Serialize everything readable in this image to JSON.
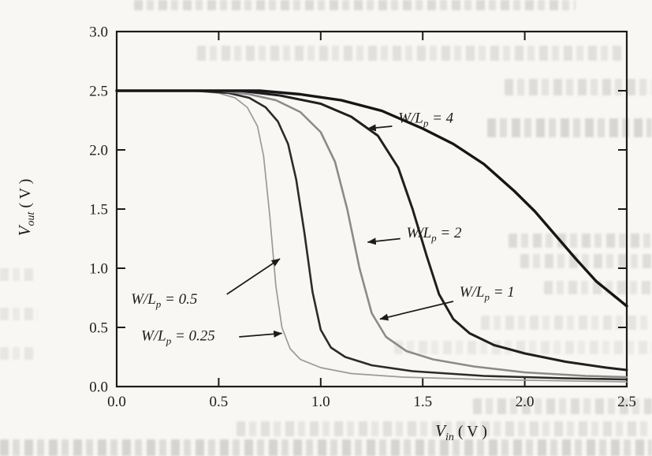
{
  "figure": {
    "background_color": "#f8f7f3",
    "frame_color": "#1c1c1c"
  },
  "chart_data": {
    "type": "line",
    "title": "",
    "xlabel": {
      "var": "V",
      "sub": "in",
      "unit": " ( V )"
    },
    "ylabel": {
      "var": "V",
      "sub": "out",
      "unit": " ( V )"
    },
    "xlim": [
      0,
      2.5
    ],
    "ylim": [
      0,
      3.0
    ],
    "grid": false,
    "box_frame": true,
    "legend_position": "none",
    "xticks": {
      "values": [
        0,
        0.5,
        1.0,
        1.5,
        2.0,
        2.5
      ],
      "labels": [
        "0.0",
        "0.5",
        "1.0",
        "1.5",
        "2.0",
        "2.5"
      ]
    },
    "yticks": {
      "values": [
        0,
        0.5,
        1.0,
        1.5,
        2.0,
        2.5,
        3.0
      ],
      "labels": [
        "0.0",
        "0.5",
        "1.0",
        "1.5",
        "2.0",
        "2.5",
        "3.0"
      ]
    },
    "series": [
      {
        "name": "W/Lp = 0.25",
        "wl": "0.25",
        "color": "#9a9a9a",
        "width": 1.7,
        "points": [
          [
            0,
            2.5
          ],
          [
            0.35,
            2.5
          ],
          [
            0.5,
            2.48
          ],
          [
            0.58,
            2.44
          ],
          [
            0.64,
            2.36
          ],
          [
            0.69,
            2.2
          ],
          [
            0.72,
            1.95
          ],
          [
            0.75,
            1.45
          ],
          [
            0.78,
            0.85
          ],
          [
            0.81,
            0.5
          ],
          [
            0.85,
            0.32
          ],
          [
            0.9,
            0.23
          ],
          [
            1.0,
            0.16
          ],
          [
            1.15,
            0.11
          ],
          [
            1.4,
            0.08
          ],
          [
            1.8,
            0.06
          ],
          [
            2.5,
            0.04
          ]
        ]
      },
      {
        "name": "W/Lp = 0.5",
        "wl": "0.5",
        "color": "#2b2b2b",
        "width": 2.6,
        "points": [
          [
            0,
            2.5
          ],
          [
            0.4,
            2.5
          ],
          [
            0.55,
            2.48
          ],
          [
            0.65,
            2.44
          ],
          [
            0.73,
            2.36
          ],
          [
            0.79,
            2.24
          ],
          [
            0.84,
            2.05
          ],
          [
            0.88,
            1.75
          ],
          [
            0.92,
            1.3
          ],
          [
            0.96,
            0.8
          ],
          [
            1.0,
            0.48
          ],
          [
            1.05,
            0.33
          ],
          [
            1.12,
            0.25
          ],
          [
            1.25,
            0.18
          ],
          [
            1.45,
            0.13
          ],
          [
            1.8,
            0.09
          ],
          [
            2.2,
            0.07
          ],
          [
            2.5,
            0.06
          ]
        ]
      },
      {
        "name": "W/Lp = 1",
        "wl": "1",
        "color": "#8b8b8b",
        "width": 2.6,
        "points": [
          [
            0,
            2.5
          ],
          [
            0.5,
            2.5
          ],
          [
            0.65,
            2.47
          ],
          [
            0.78,
            2.42
          ],
          [
            0.9,
            2.32
          ],
          [
            1.0,
            2.15
          ],
          [
            1.07,
            1.9
          ],
          [
            1.13,
            1.5
          ],
          [
            1.19,
            1.0
          ],
          [
            1.25,
            0.62
          ],
          [
            1.32,
            0.42
          ],
          [
            1.42,
            0.3
          ],
          [
            1.55,
            0.23
          ],
          [
            1.75,
            0.17
          ],
          [
            2.0,
            0.12
          ],
          [
            2.3,
            0.09
          ],
          [
            2.5,
            0.08
          ]
        ]
      },
      {
        "name": "W/Lp = 2",
        "wl": "2",
        "color": "#1f1f1f",
        "width": 3.0,
        "points": [
          [
            0,
            2.5
          ],
          [
            0.6,
            2.5
          ],
          [
            0.8,
            2.46
          ],
          [
            1.0,
            2.39
          ],
          [
            1.15,
            2.28
          ],
          [
            1.28,
            2.12
          ],
          [
            1.38,
            1.85
          ],
          [
            1.45,
            1.5
          ],
          [
            1.52,
            1.1
          ],
          [
            1.58,
            0.78
          ],
          [
            1.65,
            0.57
          ],
          [
            1.73,
            0.45
          ],
          [
            1.85,
            0.35
          ],
          [
            2.0,
            0.28
          ],
          [
            2.2,
            0.21
          ],
          [
            2.4,
            0.16
          ],
          [
            2.5,
            0.14
          ]
        ]
      },
      {
        "name": "W/Lp = 4",
        "wl": "4",
        "color": "#161616",
        "width": 3.4,
        "points": [
          [
            0,
            2.5
          ],
          [
            0.7,
            2.5
          ],
          [
            0.9,
            2.47
          ],
          [
            1.1,
            2.42
          ],
          [
            1.3,
            2.33
          ],
          [
            1.5,
            2.18
          ],
          [
            1.65,
            2.05
          ],
          [
            1.8,
            1.88
          ],
          [
            1.95,
            1.65
          ],
          [
            2.05,
            1.48
          ],
          [
            2.15,
            1.28
          ],
          [
            2.25,
            1.08
          ],
          [
            2.35,
            0.89
          ],
          [
            2.45,
            0.75
          ],
          [
            2.5,
            0.68
          ]
        ]
      }
    ],
    "annotations": [
      {
        "pre": "W/L",
        "sub": "p",
        "post": " = 4",
        "text_x": 1.38,
        "text_y": 2.23,
        "arrow_from": [
          1.35,
          2.2
        ],
        "arrow_to": [
          1.23,
          2.18
        ]
      },
      {
        "pre": "W/L",
        "sub": "p",
        "post": " = 2",
        "text_x": 1.42,
        "text_y": 1.26,
        "arrow_from": [
          1.39,
          1.25
        ],
        "arrow_to": [
          1.23,
          1.22
        ]
      },
      {
        "pre": "W/L",
        "sub": "p",
        "post": " = 1",
        "text_x": 1.68,
        "text_y": 0.76,
        "arrow_from": [
          1.65,
          0.72
        ],
        "arrow_to": [
          1.29,
          0.57
        ]
      },
      {
        "pre": "W/L",
        "sub": "p",
        "post": " = 0.5",
        "text_x": 0.07,
        "text_y": 0.7,
        "arrow_from": [
          0.54,
          0.78
        ],
        "arrow_to": [
          0.8,
          1.08
        ]
      },
      {
        "pre": "W/L",
        "sub": "p",
        "post": " = 0.25",
        "text_x": 0.12,
        "text_y": 0.39,
        "arrow_from": [
          0.6,
          0.42
        ],
        "arrow_to": [
          0.81,
          0.45
        ]
      }
    ]
  }
}
